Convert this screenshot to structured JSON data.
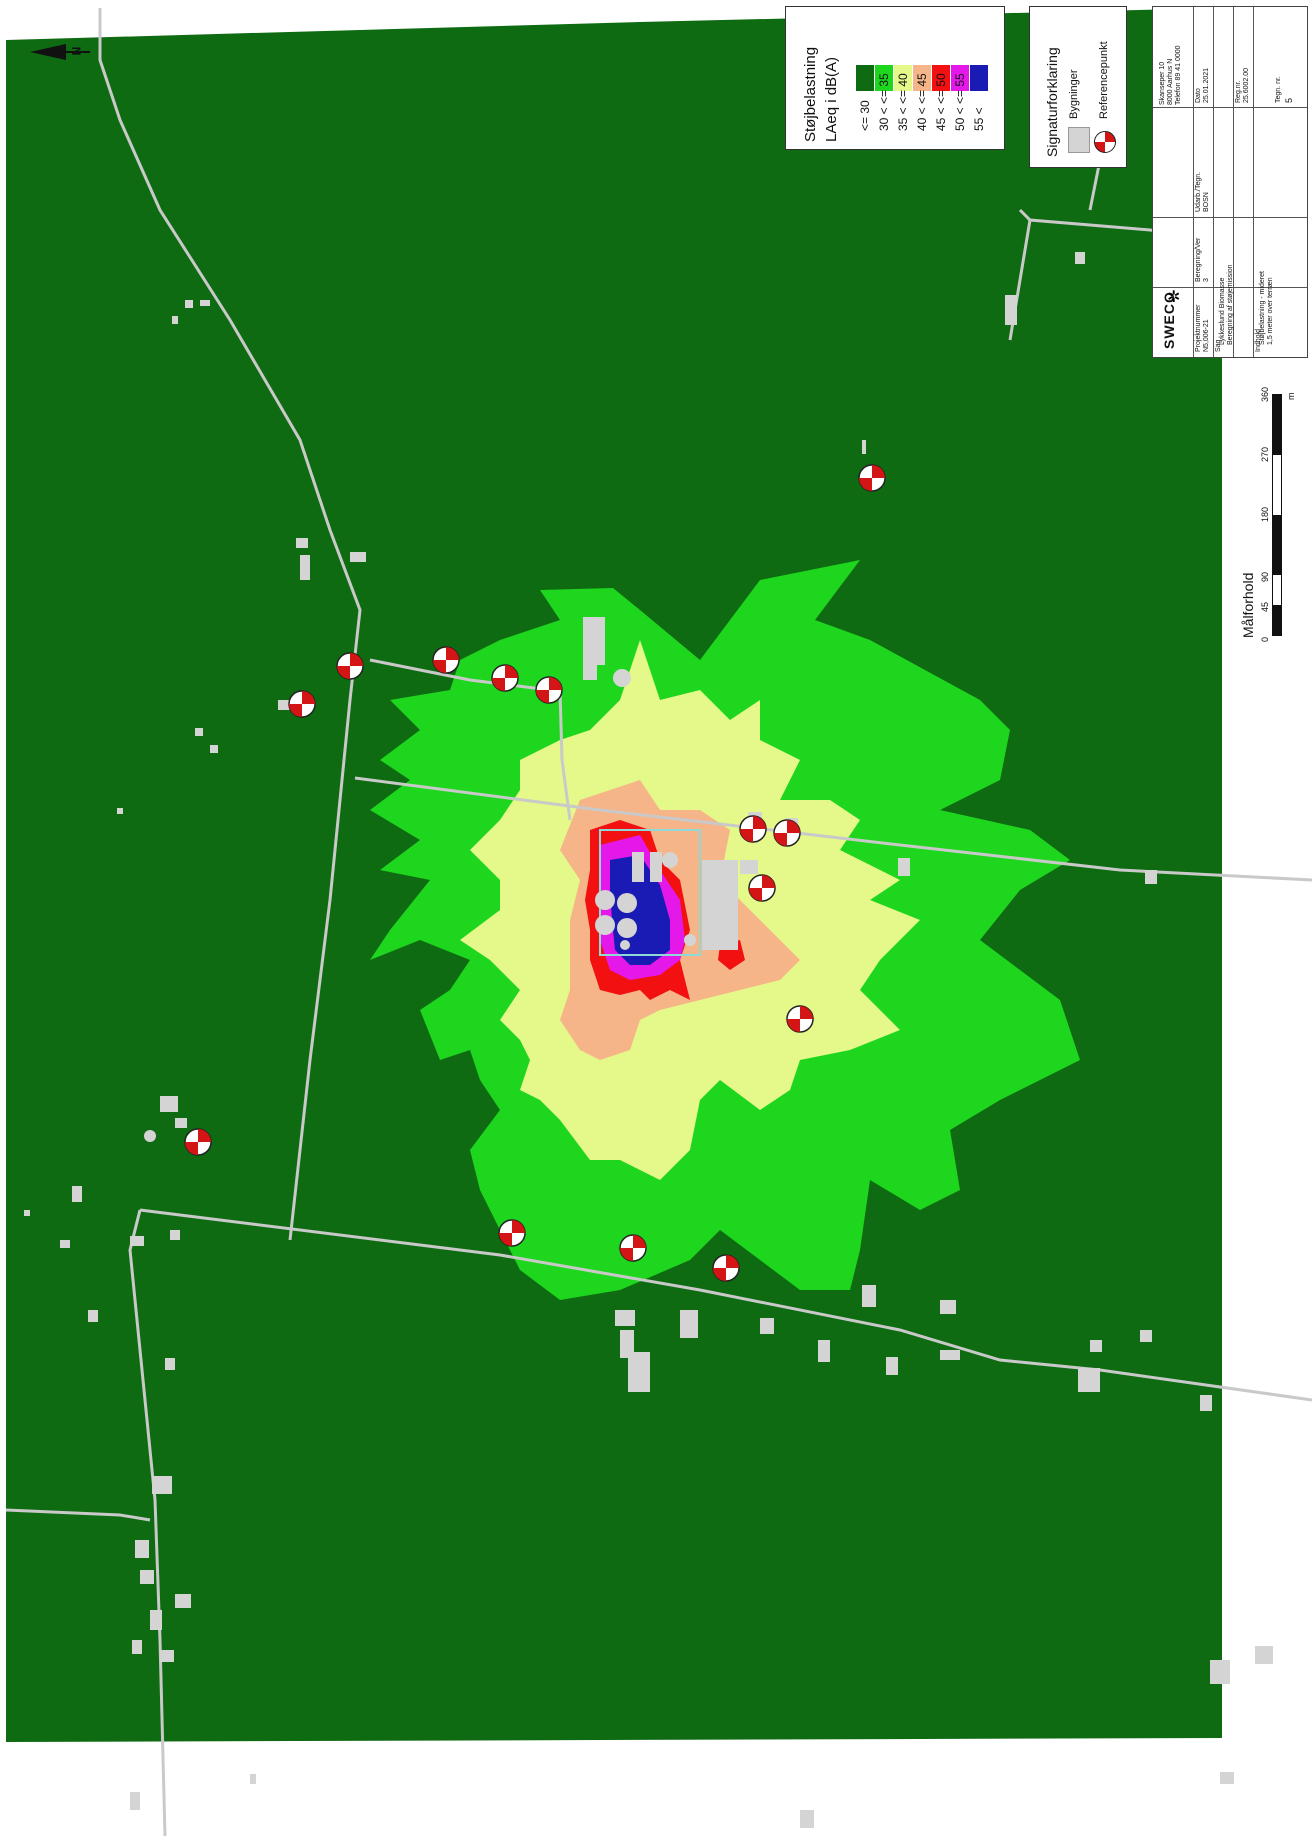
{
  "legend": {
    "title_line1": "Støjbelastning",
    "title_line2": "LAeq i dB(A)",
    "classes": [
      {
        "label": "<= 30",
        "color": "#0e6b12"
      },
      {
        "label": "30 < <= 35",
        "color": "#1ed61e"
      },
      {
        "label": "35 < <= 40",
        "color": "#e5f88a"
      },
      {
        "label": "40 < <= 45",
        "color": "#f6b588"
      },
      {
        "label": "45 < <= 50",
        "color": "#f21010"
      },
      {
        "label": "50 < <= 55",
        "color": "#e418e8"
      },
      {
        "label": "55 <",
        "color": "#1a1ab4"
      }
    ]
  },
  "signature": {
    "title": "Signaturforklaring",
    "buildings_label": "Bygninger",
    "reference_label": "Referencepunkt"
  },
  "scalebar": {
    "title": "Målforhold",
    "ticks": [
      "0",
      "45",
      "90",
      "180",
      "270",
      "360"
    ],
    "unit": "m"
  },
  "north_label": "N",
  "titleblock": {
    "logo": "SWECO",
    "address": "Skanseper 10\n8000 Aarhus N\nTelefon 89 41 0000",
    "date_label": "Dato",
    "date": "25.01.2021",
    "project_no_label": "Projektnummer",
    "project_no": "N5,006-21",
    "version_label": "Beregning/Ver",
    "version": "3",
    "drawn_label": "Udarb./Tegn.",
    "drawn": "BOSN",
    "case_label": "Sag",
    "case_text": "Lykkeslund Biomasse\nBeregning af støjemission",
    "ref_label": "Reg.nr.",
    "ref": "25.6002.00",
    "content_label": "Indhold",
    "content_text": "Støjbelastning - mideret\n1,5 meter over terræn",
    "drawing_no_label": "Tegn. nr.",
    "drawing_no": "5"
  },
  "colors": {
    "background_green": "#0e6b12",
    "road": "#c9c9c9",
    "building": "#d4d4d4"
  }
}
